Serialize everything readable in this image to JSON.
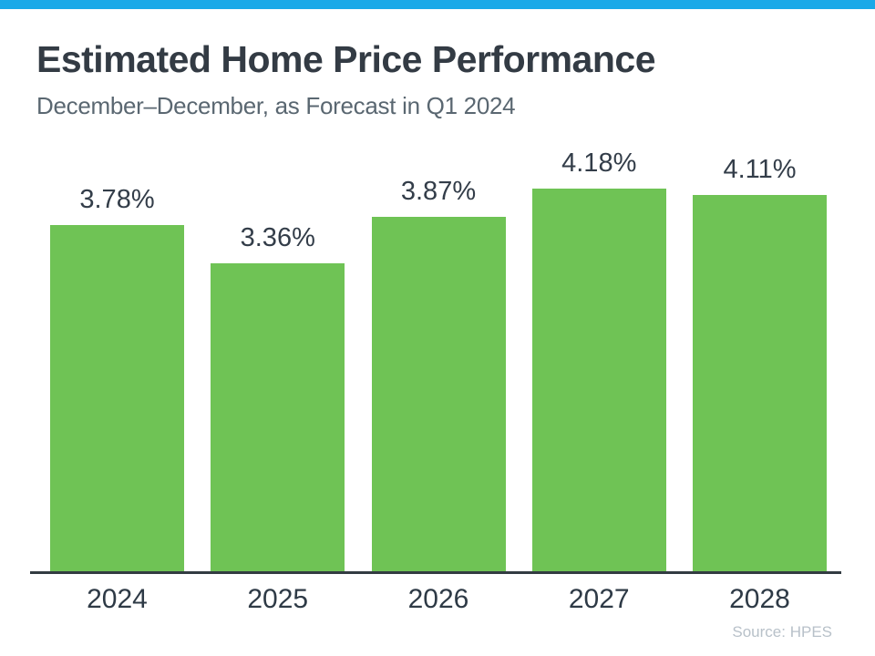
{
  "page": {
    "title": "Estimated Home Price Performance",
    "subtitle": "December–December, as Forecast in Q1 2024",
    "source": "Source: HPES",
    "accent_color": "#19A9E8"
  },
  "chart_data": {
    "type": "bar",
    "title": "Estimated Home Price Performance",
    "subtitle": "December–December, as Forecast in Q1 2024",
    "categories": [
      "2024",
      "2025",
      "2026",
      "2027",
      "2028"
    ],
    "values": [
      3.78,
      3.36,
      3.87,
      4.18,
      4.11
    ],
    "value_labels": [
      "3.78%",
      "3.36%",
      "3.87%",
      "4.18%",
      "4.11%"
    ],
    "xlabel": "",
    "ylabel": "",
    "ylim": [
      0,
      4.18
    ],
    "grid": false,
    "legend": false,
    "bar_color": "#6FC355",
    "value_label_color": "#333D49",
    "axis_label_color": "#2E3A46",
    "axis_line_color": "#333C42",
    "source": "Source: HPES"
  }
}
